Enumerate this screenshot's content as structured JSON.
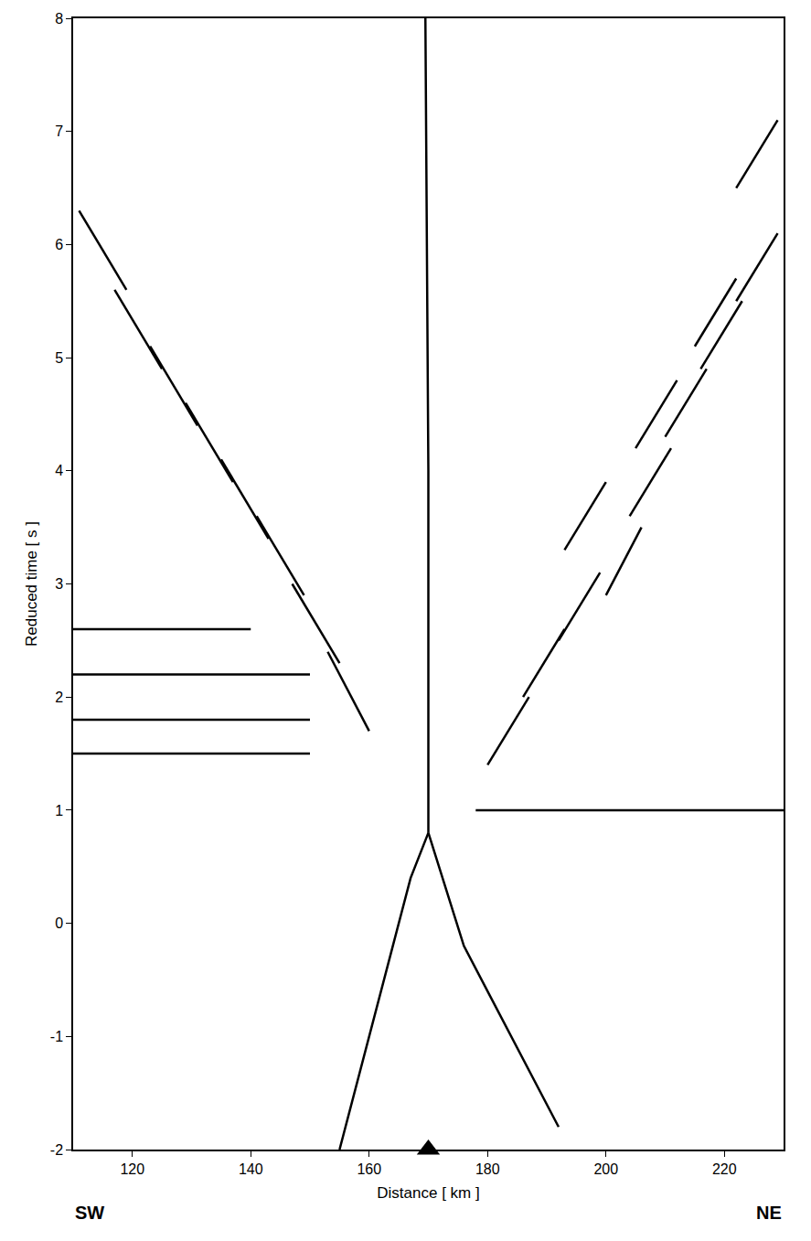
{
  "chart_data": {
    "type": "line",
    "x_label": "Distance [ km ]",
    "y_label": "Reduced time [ s ]",
    "direction_labels": {
      "left": "SW",
      "right": "NE"
    },
    "xlim": [
      110,
      230
    ],
    "ylim": [
      -2,
      8
    ],
    "xticks": [
      120,
      140,
      160,
      180,
      200,
      220
    ],
    "yticks": [
      -2,
      -1,
      0,
      1,
      2,
      3,
      4,
      5,
      6,
      7,
      8
    ],
    "grid": false,
    "series": [
      {
        "color": "#000000",
        "line_style": "solid",
        "marker": "none",
        "x": [
          170,
          167,
          164,
          161,
          158,
          155
        ],
        "values": [
          0.8,
          0.4,
          -0.2,
          -0.8,
          -1.4,
          -2.0
        ]
      },
      {
        "color": "#000000",
        "line_style": "solid",
        "marker": "none",
        "x": [
          170,
          173,
          176,
          180,
          184,
          188,
          192
        ],
        "values": [
          0.8,
          0.3,
          -0.2,
          -0.6,
          -1.0,
          -1.4,
          -1.8
        ]
      },
      {
        "color": "#000000",
        "line_style": "solid",
        "marker": "none",
        "x": [
          170,
          170,
          169.5
        ],
        "values": [
          0.8,
          4.0,
          8.0
        ]
      },
      {
        "color": "#000000",
        "line_style": "solid",
        "marker": "none",
        "x": [
          110,
          150
        ],
        "values": [
          1.5,
          1.5
        ]
      },
      {
        "color": "#000000",
        "line_style": "solid",
        "marker": "none",
        "x": [
          110,
          150
        ],
        "values": [
          1.8,
          1.8
        ]
      },
      {
        "color": "#000000",
        "line_style": "solid",
        "marker": "none",
        "x": [
          110,
          150
        ],
        "values": [
          2.2,
          2.2
        ]
      },
      {
        "color": "#000000",
        "line_style": "solid",
        "marker": "none",
        "x": [
          110,
          140
        ],
        "values": [
          2.6,
          2.6
        ]
      },
      {
        "color": "#000000",
        "line_style": "solid",
        "marker": "none",
        "x": [
          178,
          230
        ],
        "values": [
          1.0,
          1.0
        ]
      },
      {
        "color": "#000000",
        "line_style": "solid",
        "marker": "none",
        "x": [
          111,
          119,
          null,
          117,
          125,
          null,
          123,
          131,
          null,
          129,
          137,
          null,
          135,
          143,
          null,
          141,
          149,
          null,
          147,
          155,
          null,
          153,
          160
        ],
        "values": [
          6.3,
          5.6,
          null,
          5.6,
          4.9,
          null,
          5.1,
          4.4,
          null,
          4.6,
          3.9,
          null,
          4.1,
          3.4,
          null,
          3.6,
          2.9,
          null,
          3.0,
          2.3,
          null,
          2.4,
          1.7
        ]
      },
      {
        "color": "#000000",
        "line_style": "solid",
        "marker": "none",
        "x": [
          180,
          187,
          null,
          186,
          193,
          null,
          192,
          199,
          null,
          200,
          206,
          null,
          204,
          211,
          null,
          210,
          217,
          null,
          216,
          223,
          null,
          222,
          229
        ],
        "values": [
          1.4,
          2.0,
          null,
          2.0,
          2.6,
          null,
          2.5,
          3.1,
          null,
          2.9,
          3.5,
          null,
          3.6,
          4.2,
          null,
          4.3,
          4.9,
          null,
          4.9,
          5.5,
          null,
          5.5,
          6.1
        ]
      },
      {
        "color": "#000000",
        "line_style": "solid",
        "marker": "none",
        "x": [
          193,
          200,
          null,
          205,
          212,
          null,
          215,
          222,
          null,
          222,
          229
        ],
        "values": [
          3.3,
          3.9,
          null,
          4.2,
          4.8,
          null,
          5.1,
          5.7,
          null,
          6.5,
          7.1
        ]
      },
      {
        "type": "scatter",
        "color": "#000000",
        "marker": "triangle-up",
        "x": [
          170
        ],
        "values": [
          -2
        ]
      }
    ]
  }
}
